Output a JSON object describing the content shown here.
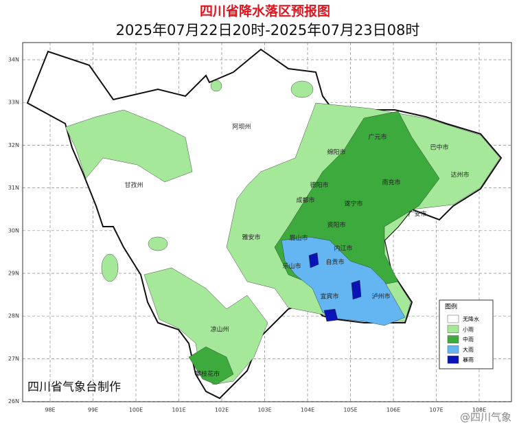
{
  "header": {
    "title": "四川省降水落区预报图",
    "subtitle": "2025年07月22日20时-2025年07月23日08时"
  },
  "axes": {
    "lon_labels": [
      "98E",
      "99E",
      "100E",
      "101E",
      "102E",
      "103E",
      "104E",
      "105E",
      "106E",
      "107E",
      "108E"
    ],
    "lat_labels": [
      "34N",
      "33N",
      "32N",
      "31N",
      "30N",
      "29N",
      "28N",
      "27N",
      "26N"
    ]
  },
  "places": [
    "阿坝州",
    "甘孜州",
    "绵阳市",
    "广元市",
    "巴中市",
    "达州市",
    "德阳市",
    "南充市",
    "成都市",
    "遂宁市",
    "广安市",
    "雅安市",
    "眉山市",
    "资阳市",
    "内江市",
    "乐山市",
    "自贡市",
    "宜宾市",
    "泸州市",
    "凉山州",
    "攀枝花市"
  ],
  "legend": {
    "title": "图例",
    "items": [
      {
        "label": "无降水",
        "color": "#ffffff"
      },
      {
        "label": "小雨",
        "color": "#a6e89a"
      },
      {
        "label": "中雨",
        "color": "#3daa3d"
      },
      {
        "label": "大雨",
        "color": "#63b6f2"
      },
      {
        "label": "暴雨",
        "color": "#0a14b4"
      }
    ]
  },
  "credit": "四川省气象台制作",
  "watermark": "@四川气象"
}
